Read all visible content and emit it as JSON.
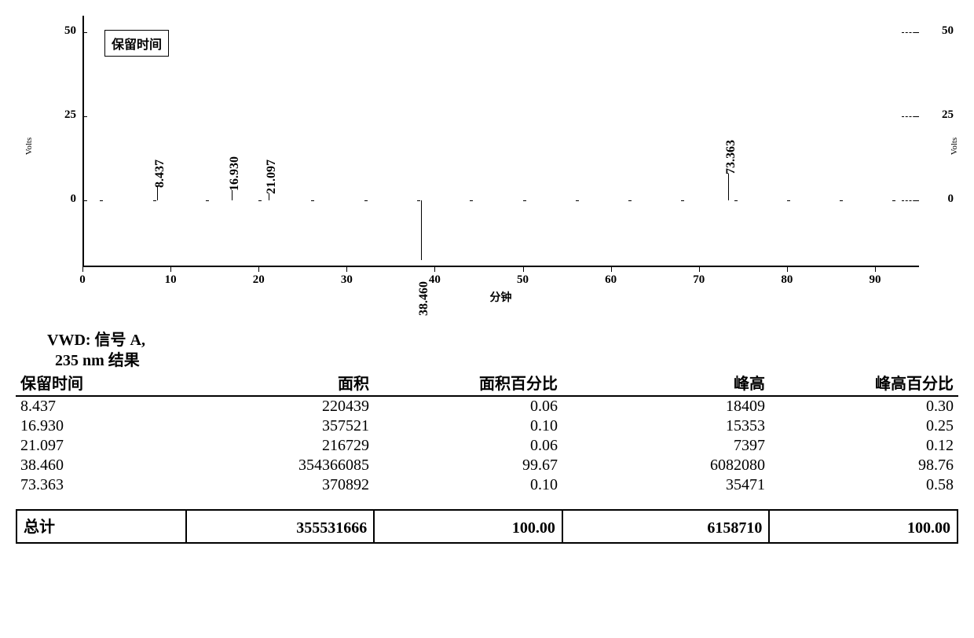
{
  "chromatogram": {
    "type": "line",
    "legend_label": "保留时间",
    "y_label_left": "Volts",
    "y_label_right": "Volts",
    "x_label": "分钟",
    "xlim": [
      0,
      95
    ],
    "ylim": [
      -20,
      55
    ],
    "xticks": [
      0,
      10,
      20,
      30,
      40,
      50,
      60,
      70,
      80,
      90
    ],
    "yticks_left": [
      0,
      25,
      50
    ],
    "yticks_right": [
      0,
      25,
      50
    ],
    "background_color": "#ffffff",
    "axis_color": "#000000",
    "text_color": "#000000",
    "title_fontsize": 16,
    "tick_fontsize": 15,
    "baseline_y": 0,
    "peaks": [
      {
        "rt": 8.437,
        "label": "8.437",
        "height_est": 4
      },
      {
        "rt": 16.93,
        "label": "16.930",
        "height_est": 3
      },
      {
        "rt": 21.097,
        "label": "21.097",
        "height_est": 2
      },
      {
        "rt": 38.46,
        "label": "38.460",
        "height_est": -18
      },
      {
        "rt": 73.363,
        "label": "73.363",
        "height_est": 8
      }
    ]
  },
  "table": {
    "title_line1": "VWD: 信号 A,",
    "title_line2": "235 nm 结果",
    "columns": [
      "保留时间",
      "面积",
      "面积百分比",
      "峰高",
      "峰高百分比"
    ],
    "col_widths_pct": [
      18,
      20,
      20,
      22,
      20
    ],
    "rows": [
      [
        "8.437",
        "220439",
        "0.06",
        "18409",
        "0.30"
      ],
      [
        "16.930",
        "357521",
        "0.10",
        "15353",
        "0.25"
      ],
      [
        "21.097",
        "216729",
        "0.06",
        "7397",
        "0.12"
      ],
      [
        "38.460",
        "354366085",
        "99.67",
        "6082080",
        "98.76"
      ],
      [
        "73.363",
        "370892",
        "0.10",
        "35471",
        "0.58"
      ]
    ],
    "totals_label": "总计",
    "totals": [
      "355531666",
      "100.00",
      "6158710",
      "100.00"
    ]
  }
}
